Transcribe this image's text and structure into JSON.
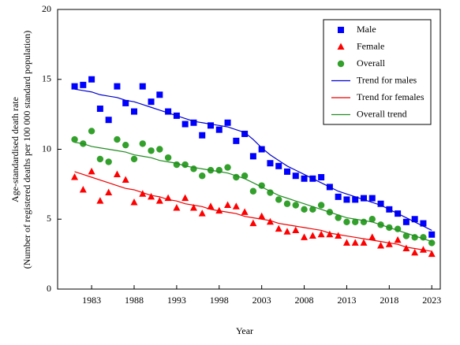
{
  "chart_data": {
    "type": "scatter",
    "x_label": "Year",
    "y_label": [
      "Age-standardised death rate",
      "(Number of registered deaths per 100 000 standard population)"
    ],
    "x": [
      1981,
      1982,
      1983,
      1984,
      1985,
      1986,
      1987,
      1988,
      1989,
      1990,
      1991,
      1992,
      1993,
      1994,
      1995,
      1996,
      1997,
      1998,
      1999,
      2000,
      2001,
      2002,
      2003,
      2004,
      2005,
      2006,
      2007,
      2008,
      2009,
      2010,
      2011,
      2012,
      2013,
      2014,
      2015,
      2016,
      2017,
      2018,
      2019,
      2020,
      2021,
      2022,
      2023
    ],
    "xlim": [
      1979,
      2024
    ],
    "xticks": [
      1983,
      1988,
      1993,
      1998,
      2003,
      2008,
      2013,
      2018,
      2023
    ],
    "ylim": [
      0,
      20
    ],
    "yticks": [
      0,
      5,
      10,
      15,
      20
    ],
    "grid": false,
    "legend": "upper right",
    "series": [
      {
        "name": "Male",
        "color": "#0000ff",
        "marker": "square",
        "values": [
          14.5,
          14.6,
          15.0,
          12.9,
          12.1,
          14.5,
          13.3,
          12.7,
          14.5,
          13.4,
          13.9,
          12.7,
          12.4,
          11.8,
          11.9,
          11.0,
          11.7,
          11.4,
          11.9,
          10.6,
          11.1,
          9.5,
          10.0,
          9.0,
          8.8,
          8.4,
          8.1,
          7.9,
          7.9,
          8.0,
          7.3,
          6.6,
          6.4,
          6.4,
          6.5,
          6.5,
          6.1,
          5.7,
          5.4,
          4.8,
          5.0,
          4.7,
          3.9
        ]
      },
      {
        "name": "Female",
        "color": "#ff0000",
        "marker": "triangle",
        "values": [
          8.0,
          7.1,
          8.4,
          6.3,
          6.9,
          8.2,
          7.8,
          6.2,
          6.8,
          6.6,
          6.3,
          6.5,
          5.8,
          6.5,
          5.8,
          5.4,
          5.9,
          5.6,
          6.0,
          5.9,
          5.5,
          4.7,
          5.2,
          4.8,
          4.3,
          4.1,
          4.2,
          3.7,
          3.8,
          3.9,
          3.9,
          3.8,
          3.3,
          3.3,
          3.3,
          3.7,
          3.1,
          3.2,
          3.5,
          2.9,
          2.6,
          2.8,
          2.5
        ]
      },
      {
        "name": "Overall",
        "color": "#33a02c",
        "marker": "circle",
        "values": [
          10.7,
          10.4,
          11.3,
          9.3,
          9.1,
          10.7,
          10.3,
          9.3,
          10.4,
          9.9,
          10.0,
          9.4,
          8.9,
          8.9,
          8.6,
          8.1,
          8.5,
          8.5,
          8.7,
          8.0,
          8.1,
          7.0,
          7.4,
          6.9,
          6.4,
          6.1,
          6.0,
          5.7,
          5.7,
          6.0,
          5.5,
          5.1,
          4.8,
          4.8,
          4.8,
          5.0,
          4.6,
          4.4,
          4.3,
          3.8,
          3.7,
          3.7,
          3.3
        ]
      },
      {
        "name": "Trend for males",
        "color": "#0000cc",
        "marker": "line",
        "values": [
          14.3,
          14.2,
          14.1,
          13.9,
          13.8,
          13.7,
          13.5,
          13.4,
          13.2,
          13.0,
          12.8,
          12.6,
          12.4,
          12.2,
          12.0,
          11.9,
          11.8,
          11.7,
          11.6,
          11.4,
          11.2,
          10.7,
          10.1,
          9.6,
          9.2,
          8.8,
          8.5,
          8.2,
          7.9,
          7.6,
          7.3,
          7.0,
          6.8,
          6.6,
          6.4,
          6.2,
          6.0,
          5.7,
          5.4,
          5.1,
          4.8,
          4.5,
          4.2
        ]
      },
      {
        "name": "Trend for females",
        "color": "#ee0000",
        "marker": "line",
        "values": [
          8.4,
          8.2,
          8.0,
          7.8,
          7.6,
          7.4,
          7.2,
          7.1,
          6.9,
          6.7,
          6.6,
          6.4,
          6.3,
          6.1,
          6.0,
          5.9,
          5.7,
          5.6,
          5.5,
          5.4,
          5.2,
          5.1,
          5.0,
          4.9,
          4.7,
          4.6,
          4.5,
          4.4,
          4.3,
          4.2,
          4.0,
          3.9,
          3.8,
          3.7,
          3.6,
          3.5,
          3.4,
          3.3,
          3.2,
          3.0,
          2.9,
          2.8,
          2.7
        ]
      },
      {
        "name": "Overall trend",
        "color": "#228b22",
        "marker": "line",
        "values": [
          10.5,
          10.4,
          10.2,
          10.1,
          10.0,
          9.9,
          9.8,
          9.6,
          9.5,
          9.4,
          9.2,
          9.1,
          9.0,
          8.8,
          8.7,
          8.6,
          8.5,
          8.4,
          8.3,
          8.1,
          7.9,
          7.6,
          7.3,
          7.0,
          6.7,
          6.5,
          6.3,
          6.1,
          5.9,
          5.7,
          5.5,
          5.3,
          5.1,
          5.0,
          4.9,
          4.8,
          4.6,
          4.4,
          4.2,
          4.0,
          3.8,
          3.6,
          3.4
        ]
      }
    ]
  }
}
